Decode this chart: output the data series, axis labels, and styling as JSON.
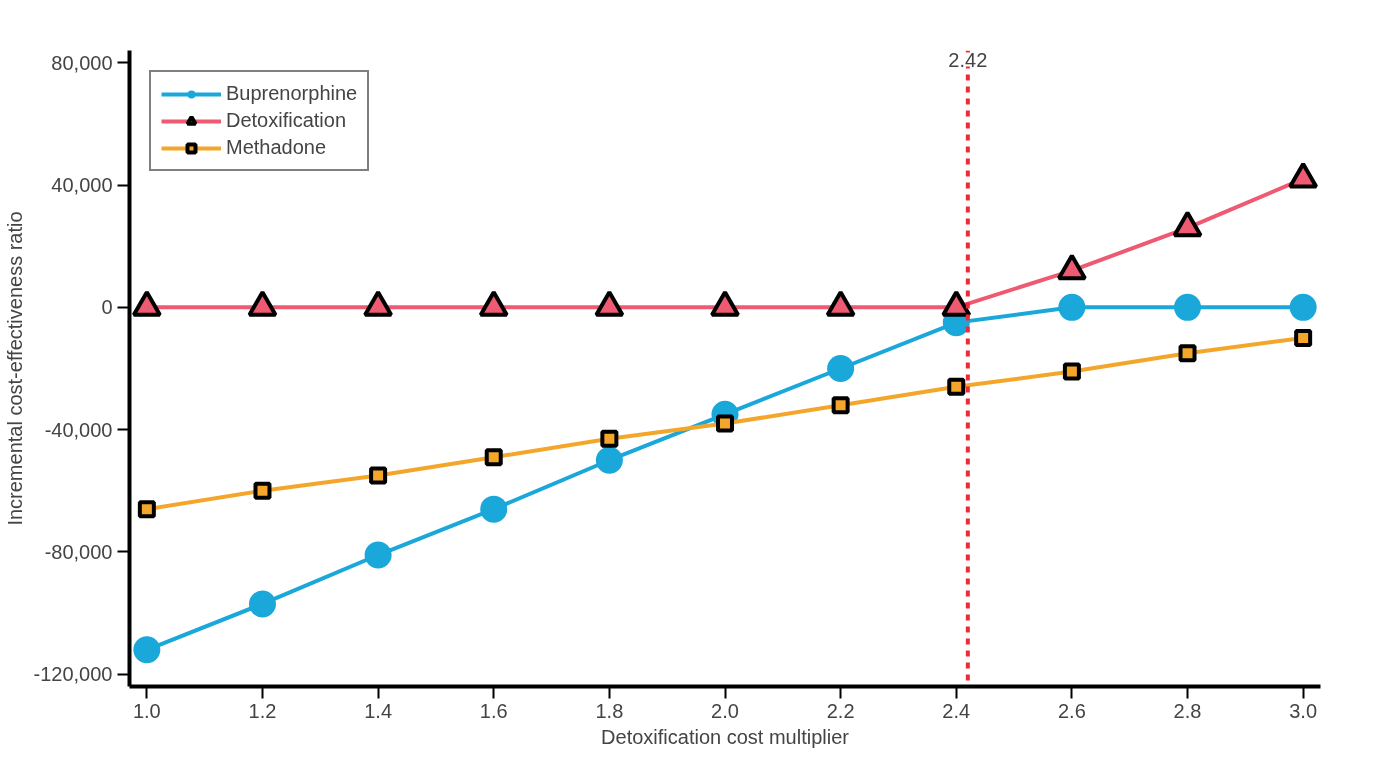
{
  "chart_data": {
    "type": "line",
    "xlabel": "Detoxification cost multiplier",
    "ylabel": "Incremental cost-effectiveness ratio",
    "x": [
      1.0,
      1.2,
      1.4,
      1.6,
      1.8,
      2.0,
      2.2,
      2.4,
      2.6,
      2.8,
      3.0
    ],
    "series": [
      {
        "name": "Buprenorphine",
        "color": "#1aa7d9",
        "marker": "circle",
        "values": [
          -112000,
          -97000,
          -81000,
          -66000,
          -50000,
          -35000,
          -20000,
          -5000,
          0,
          0,
          0
        ]
      },
      {
        "name": "Detoxification",
        "color": "#ee5a72",
        "marker": "triangle",
        "values": [
          0,
          0,
          0,
          0,
          0,
          0,
          0,
          0,
          12000,
          26000,
          42000
        ]
      },
      {
        "name": "Methadone",
        "color": "#f4a62a",
        "marker": "square",
        "values": [
          -66000,
          -60000,
          -55000,
          -49000,
          -43000,
          -38000,
          -32000,
          -26000,
          -21000,
          -15000,
          -10000
        ]
      }
    ],
    "xlim": [
      0.97,
      3.03
    ],
    "ylim": [
      -124000,
      84000
    ],
    "xticks": [
      {
        "value": 1.0,
        "label": "1.0"
      },
      {
        "value": 1.2,
        "label": "1.2"
      },
      {
        "value": 1.4,
        "label": "1.4"
      },
      {
        "value": 1.6,
        "label": "1.6"
      },
      {
        "value": 1.8,
        "label": "1.8"
      },
      {
        "value": 2.0,
        "label": "2.0"
      },
      {
        "value": 2.2,
        "label": "2.2"
      },
      {
        "value": 2.4,
        "label": "2.4"
      },
      {
        "value": 2.6,
        "label": "2.6"
      },
      {
        "value": 2.8,
        "label": "2.8"
      },
      {
        "value": 3.0,
        "label": "3.0"
      }
    ],
    "yticks": [
      {
        "value": -120000,
        "label": "-120,000"
      },
      {
        "value": -80000,
        "label": "-80,000"
      },
      {
        "value": -40000,
        "label": "-40,000"
      },
      {
        "value": 0,
        "label": "0"
      },
      {
        "value": 40000,
        "label": "40,000"
      },
      {
        "value": 80000,
        "label": "80,000"
      }
    ],
    "ref_lines": [
      {
        "axis": "x",
        "value": 2.42,
        "label": "2.42",
        "color": "#ee2a3a",
        "line_style": "dashed"
      }
    ],
    "legend": "top left",
    "grid": false,
    "line_style": "solid"
  }
}
